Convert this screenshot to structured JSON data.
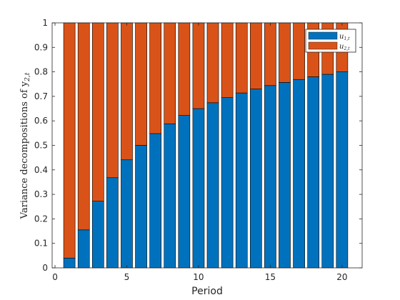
{
  "chart_data": {
    "type": "bar",
    "stacked": true,
    "title": "",
    "xlabel": "Period",
    "ylabel": "Variance decompositions of y",
    "ylabel_subscript": "2,t",
    "xlim": [
      -0.2,
      21.4
    ],
    "ylim": [
      0,
      1
    ],
    "xticks": [
      0,
      5,
      10,
      15,
      20
    ],
    "yticks": [
      0,
      0.1,
      0.2,
      0.3,
      0.4,
      0.5,
      0.6,
      0.7,
      0.8,
      0.9,
      1
    ],
    "x": [
      1,
      2,
      3,
      4,
      5,
      6,
      7,
      8,
      9,
      10,
      11,
      12,
      13,
      14,
      15,
      16,
      17,
      18,
      19,
      20
    ],
    "series": [
      {
        "name": "u",
        "name_subscript": "1,t",
        "color": "#0072BD",
        "values": [
          0.04,
          0.155,
          0.272,
          0.368,
          0.441,
          0.5,
          0.548,
          0.588,
          0.622,
          0.65,
          0.674,
          0.695,
          0.714,
          0.73,
          0.744,
          0.757,
          0.769,
          0.78,
          0.79,
          0.8
        ]
      },
      {
        "name": "u",
        "name_subscript": "2,t",
        "color": "#D95319",
        "values": [
          0.96,
          0.845,
          0.728,
          0.632,
          0.559,
          0.5,
          0.452,
          0.412,
          0.378,
          0.35,
          0.326,
          0.305,
          0.286,
          0.27,
          0.256,
          0.243,
          0.231,
          0.22,
          0.21,
          0.2
        ]
      }
    ],
    "legend_position": "top-right",
    "grid": false
  }
}
